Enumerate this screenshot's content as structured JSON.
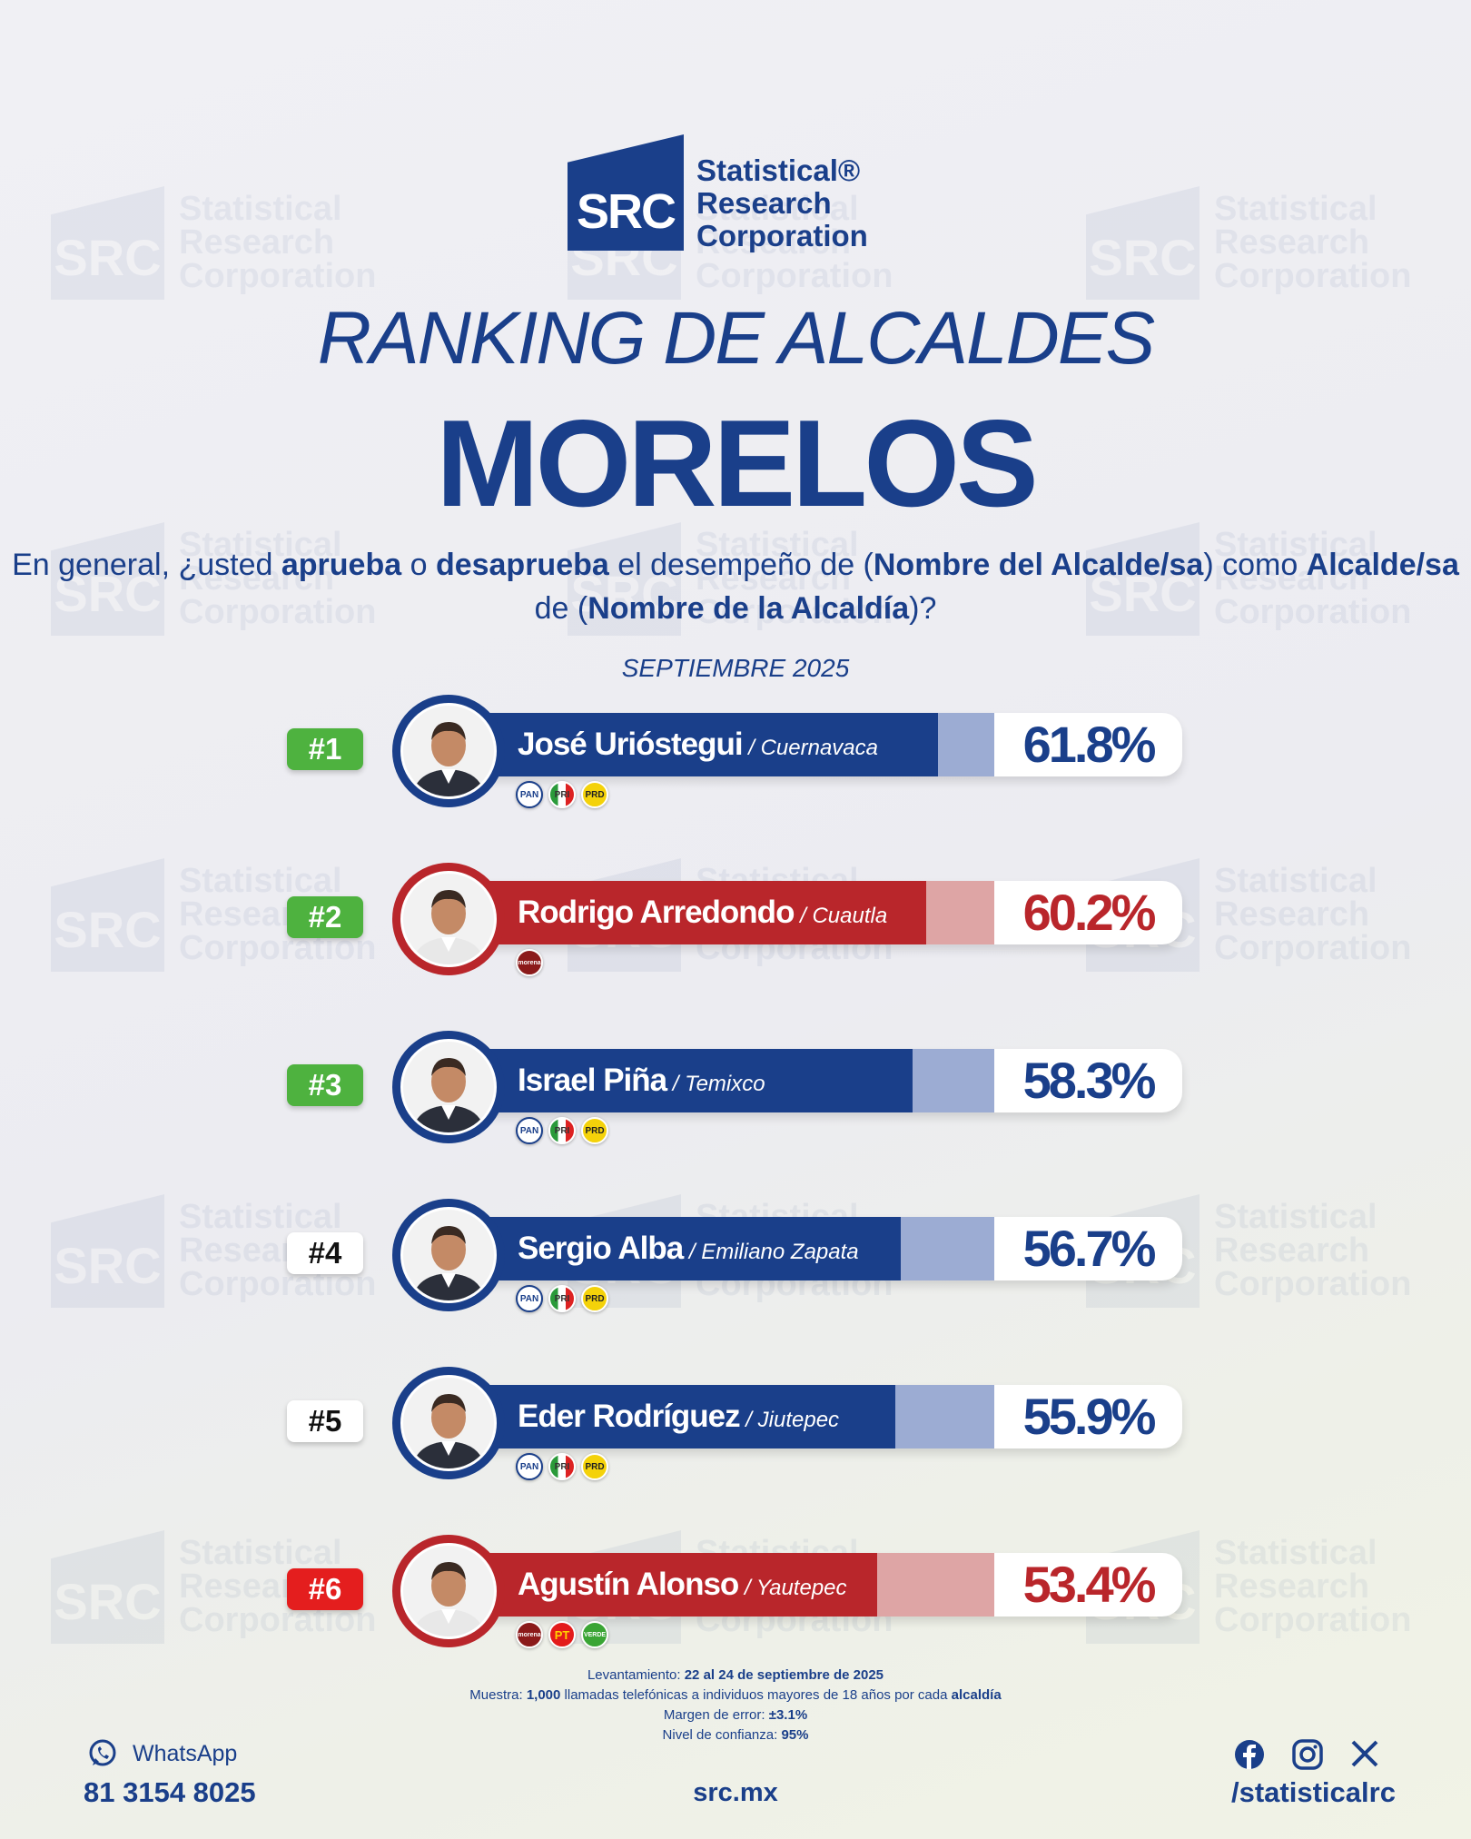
{
  "header": {
    "logo_abbr": "SRC",
    "logo_lines": [
      "Statistical®",
      "Research",
      "Corporation"
    ],
    "title": "RANKING DE ALCALDES",
    "state": "MORELOS",
    "question_parts": [
      {
        "t": "En general, ¿usted ",
        "b": false
      },
      {
        "t": "aprueba",
        "b": true
      },
      {
        "t": " o ",
        "b": false
      },
      {
        "t": "desaprueba",
        "b": true
      },
      {
        "t": " el desempeño de (",
        "b": false
      },
      {
        "t": "Nombre del Alcalde/sa",
        "b": true
      },
      {
        "t": ") como ",
        "b": false
      },
      {
        "t": "Alcalde/sa",
        "b": true
      },
      {
        "t": " de (",
        "b": false
      },
      {
        "t": "Nombre de la Alcaldía",
        "b": true
      },
      {
        "t": ")?",
        "b": false
      }
    ],
    "date": "SEPTIEMBRE 2025"
  },
  "watermark": {
    "abbr": "SRC",
    "lines": [
      "Statistical",
      "Research",
      "Corporation"
    ]
  },
  "chart_data": {
    "type": "bar",
    "title": "RANKING DE ALCALDES MORELOS",
    "categories": [
      "José Urióstegui",
      "Rodrigo Arredondo",
      "Israel Piña",
      "Sergio Alba",
      "Eder Rodríguez",
      "Agustín Alonso"
    ],
    "values": [
      61.8,
      60.2,
      58.3,
      56.7,
      55.9,
      53.4
    ],
    "value_format": "%",
    "colors": {
      "blue": "#1a3f8a",
      "red": "#b9262b"
    },
    "rows": [
      {
        "rank": "#1",
        "rank_style": "green",
        "name": "José Urióstegui",
        "city": "Cuernavaca",
        "value": 61.8,
        "label": "61.8%",
        "color": "blue",
        "parties": [
          "PAN",
          "PRI",
          "PRD"
        ]
      },
      {
        "rank": "#2",
        "rank_style": "green",
        "name": "Rodrigo Arredondo",
        "city": "Cuautla",
        "value": 60.2,
        "label": "60.2%",
        "color": "red",
        "parties": [
          "morena"
        ]
      },
      {
        "rank": "#3",
        "rank_style": "green",
        "name": "Israel Piña",
        "city": "Temixco",
        "value": 58.3,
        "label": "58.3%",
        "color": "blue",
        "parties": [
          "PAN",
          "PRI",
          "PRD"
        ]
      },
      {
        "rank": "#4",
        "rank_style": "white",
        "name": "Sergio Alba",
        "city": "Emiliano Zapata",
        "value": 56.7,
        "label": "56.7%",
        "color": "blue",
        "parties": [
          "PAN",
          "PRI",
          "PRD"
        ]
      },
      {
        "rank": "#5",
        "rank_style": "white",
        "name": "Eder Rodríguez",
        "city": "Jiutepec",
        "value": 55.9,
        "label": "55.9%",
        "color": "blue",
        "parties": [
          "PAN",
          "PRI",
          "PRD"
        ]
      },
      {
        "rank": "#6",
        "rank_style": "red",
        "name": "Agustín Alonso",
        "city": "Yautepec",
        "value": 53.4,
        "label": "53.4%",
        "color": "red",
        "parties": [
          "morena",
          "PT",
          "VERDE"
        ]
      }
    ]
  },
  "notes": [
    [
      {
        "t": "Levantamiento: ",
        "b": false
      },
      {
        "t": "22 al 24 de septiembre de 2025",
        "b": true
      }
    ],
    [
      {
        "t": "Muestra: ",
        "b": false
      },
      {
        "t": "1,000",
        "b": true
      },
      {
        "t": " llamadas telefónicas a individuos mayores de 18 años por cada ",
        "b": false
      },
      {
        "t": "alcaldía",
        "b": true
      }
    ],
    [
      {
        "t": "Margen de error: ",
        "b": false
      },
      {
        "t": "±3.1%",
        "b": true
      }
    ],
    [
      {
        "t": "Nivel de confianza: ",
        "b": false
      },
      {
        "t": "95%",
        "b": true
      }
    ]
  ],
  "footer": {
    "whatsapp_label": "WhatsApp",
    "phone": "81 3154 8025",
    "site": "src.mx",
    "handle": "/statisticalrc",
    "icons": [
      "whatsapp-icon",
      "facebook-icon",
      "instagram-icon",
      "x-icon"
    ]
  }
}
